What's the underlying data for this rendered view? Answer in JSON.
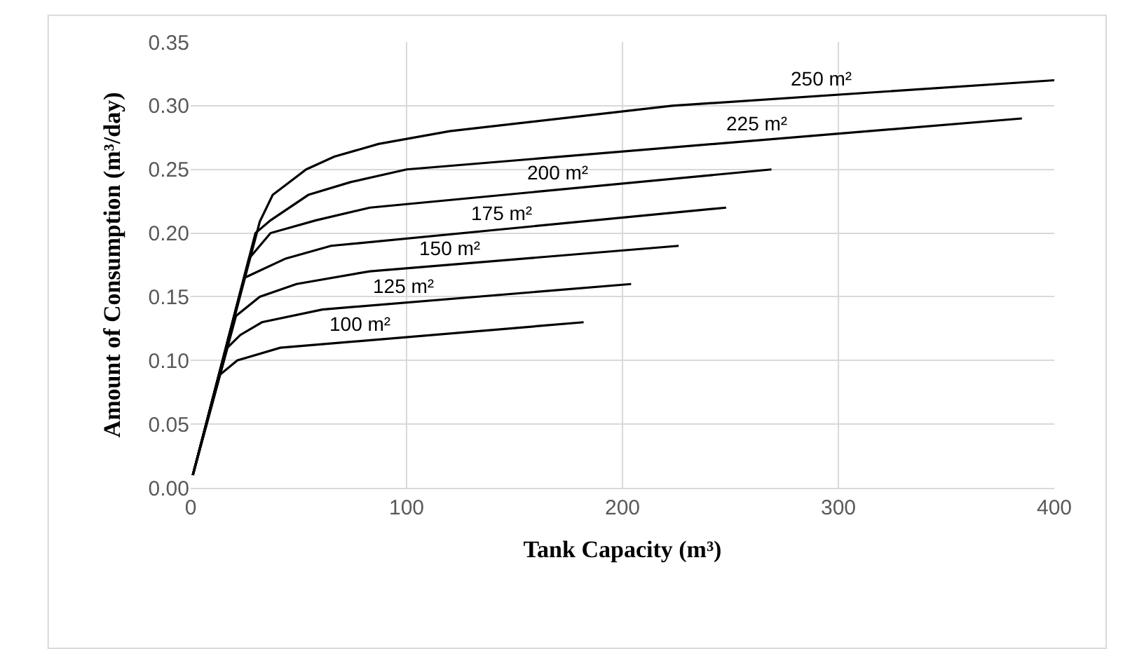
{
  "chart_data": {
    "type": "line",
    "xlabel": "Tank Capacity (m³)",
    "ylabel": "Amount of Consumption (m³/day)",
    "xlim": [
      0,
      400
    ],
    "xticks": [
      0,
      100,
      200,
      300,
      400
    ],
    "ylim": [
      0,
      0.35
    ],
    "yticks": [
      {
        "value": 0,
        "label": "0.00"
      },
      {
        "value": 0.05,
        "label": "0.05"
      },
      {
        "value": 0.1,
        "label": "0.10"
      },
      {
        "value": 0.15,
        "label": "0.15"
      },
      {
        "value": 0.2,
        "label": "0.20"
      },
      {
        "value": 0.25,
        "label": "0.25"
      },
      {
        "value": 0.3,
        "label": "0.30"
      },
      {
        "value": 0.35,
        "label": "0.35"
      }
    ],
    "grid": true,
    "legend": false,
    "marker": "none",
    "line_style": "solid",
    "series": [
      {
        "name": "100 m²",
        "color": "#000000",
        "x": [
          1,
          13,
          21.6,
          41.5,
          182
        ],
        "values": [
          0.01,
          0.088,
          0.1,
          0.11,
          0.13
        ]
      },
      {
        "name": "125 m²",
        "color": "#000000",
        "x": [
          1,
          17,
          23,
          33,
          61,
          204
        ],
        "values": [
          0.01,
          0.11,
          0.12,
          0.13,
          0.14,
          0.16
        ]
      },
      {
        "name": "150 m²",
        "color": "#000000",
        "x": [
          1,
          21,
          32,
          49,
          83,
          226
        ],
        "values": [
          0.01,
          0.135,
          0.15,
          0.16,
          0.17,
          0.19
        ]
      },
      {
        "name": "175 m²",
        "color": "#000000",
        "x": [
          1,
          25,
          44,
          65,
          248
        ],
        "values": [
          0.01,
          0.165,
          0.18,
          0.19,
          0.22
        ]
      },
      {
        "name": "200 m²",
        "color": "#000000",
        "x": [
          1,
          27,
          37,
          58,
          83,
          269
        ],
        "values": [
          0.01,
          0.18,
          0.2,
          0.21,
          0.22,
          0.25
        ]
      },
      {
        "name": "225 m²",
        "color": "#000000",
        "x": [
          1,
          30,
          37,
          54.5,
          74,
          100,
          385
        ],
        "values": [
          0.01,
          0.2,
          0.21,
          0.23,
          0.24,
          0.25,
          0.29
        ]
      },
      {
        "name": "250 m²",
        "color": "#000000",
        "x": [
          1,
          32,
          38,
          53.5,
          66.5,
          87,
          120,
          223,
          400
        ],
        "values": [
          0.01,
          0.209,
          0.23,
          0.25,
          0.26,
          0.27,
          0.28,
          0.3,
          0.32
        ]
      }
    ]
  }
}
